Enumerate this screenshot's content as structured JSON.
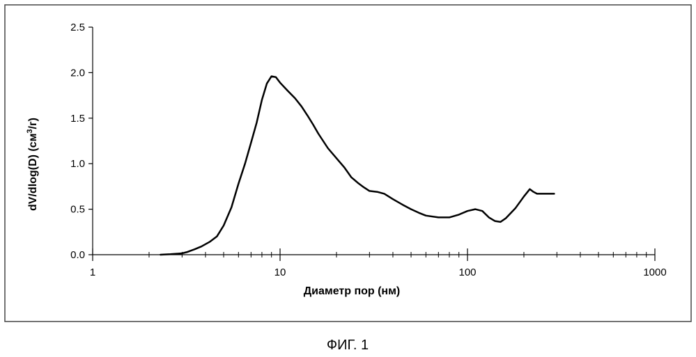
{
  "figure": {
    "caption": "ФИГ. 1"
  },
  "chart_data": {
    "type": "line",
    "title": "",
    "xlabel": "Диаметр пор (нм)",
    "ylabel_prefix": "dV/dlog(D) (см",
    "ylabel_sup": "3",
    "ylabel_suffix": "/г)",
    "x_scale": "log",
    "xlim": [
      1,
      1000
    ],
    "ylim": [
      0,
      2.5
    ],
    "x_ticks": [
      1,
      10,
      100,
      1000
    ],
    "x_tick_labels": [
      "1",
      "10",
      "100",
      "1000"
    ],
    "y_ticks": [
      0,
      0.5,
      1.0,
      1.5,
      2.0,
      2.5
    ],
    "y_tick_labels": [
      "0.0",
      "0.5",
      "1.0",
      "1.5",
      "2.0",
      "2.5"
    ],
    "grid": false,
    "legend": "none",
    "colors": {
      "line": "#000000",
      "frame": "#444444",
      "axes": "#000000"
    },
    "series": [
      {
        "x": [
          2.3,
          2.6,
          3.0,
          3.2,
          3.5,
          3.8,
          4.2,
          4.6,
          5.0,
          5.5,
          6.0,
          6.5,
          7.0,
          7.5,
          8.0,
          8.5,
          9.0,
          9.5,
          10.0,
          11.0,
          12.0,
          13.0,
          14.0,
          15.0,
          16.0,
          18.0,
          20.0,
          22.0,
          24.0,
          26.0,
          28.0,
          30.0,
          33.0,
          36.0,
          40.0,
          45.0,
          50.0,
          55.0,
          60.0,
          70.0,
          80.0,
          90.0,
          100.0,
          110.0,
          120.0,
          130.0,
          140.0,
          150.0,
          160.0,
          180.0,
          200.0,
          215.0,
          225.0,
          235.0,
          250.0,
          270.0,
          290.0
        ],
        "y": [
          0.0,
          0.005,
          0.015,
          0.03,
          0.06,
          0.09,
          0.14,
          0.2,
          0.32,
          0.52,
          0.78,
          1.0,
          1.23,
          1.45,
          1.7,
          1.88,
          1.96,
          1.95,
          1.89,
          1.8,
          1.72,
          1.63,
          1.53,
          1.43,
          1.33,
          1.17,
          1.06,
          0.96,
          0.85,
          0.79,
          0.74,
          0.7,
          0.69,
          0.67,
          0.61,
          0.55,
          0.5,
          0.46,
          0.43,
          0.41,
          0.41,
          0.44,
          0.48,
          0.5,
          0.48,
          0.41,
          0.37,
          0.36,
          0.4,
          0.51,
          0.64,
          0.72,
          0.69,
          0.67,
          0.67,
          0.67,
          0.67
        ]
      }
    ]
  }
}
